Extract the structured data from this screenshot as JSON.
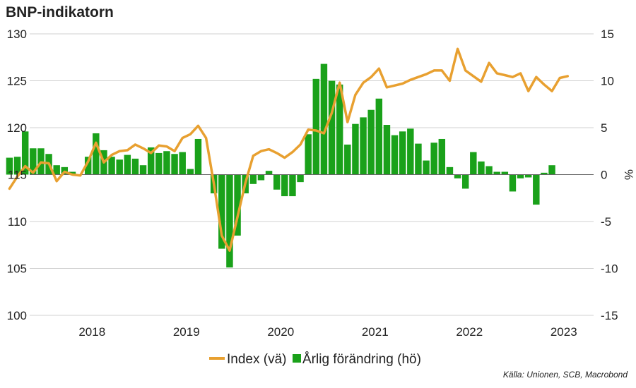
{
  "title": "BNP-indikatorn",
  "source": "Källa: Unionen, SCB, Macrobond",
  "chart_data": {
    "type": "bar+line",
    "title": "BNP-indikatorn",
    "x_tick_labels": [
      "2018",
      "2019",
      "2020",
      "2021",
      "2022",
      "2023"
    ],
    "left_axis": {
      "ylim": [
        100,
        130
      ],
      "ticks": [
        130,
        125,
        120,
        115,
        110,
        105,
        100
      ]
    },
    "right_axis": {
      "ylim": [
        -15,
        15
      ],
      "ticks": [
        15,
        10,
        5,
        0,
        -5,
        -10,
        -15
      ],
      "label": "%"
    },
    "grid": true,
    "legend_position": "bottom-center",
    "colors": {
      "line": "#e8a030",
      "bars": "#1aa11a",
      "grid": "#d0d0d0"
    },
    "start": {
      "year": 2017,
      "month": 8
    },
    "series": [
      {
        "name": "Index (vä)",
        "kind": "line",
        "axis": "left",
        "values": [
          113.5,
          114.8,
          115.9,
          115.2,
          116.3,
          116.2,
          114.3,
          115.3,
          115.0,
          114.9,
          116.4,
          118.4,
          116.3,
          117.1,
          117.5,
          117.6,
          118.2,
          117.8,
          117.3,
          118.1,
          118.0,
          117.5,
          118.9,
          119.3,
          120.2,
          118.9,
          114.0,
          108.5,
          106.9,
          110.5,
          114.1,
          117.0,
          117.5,
          117.7,
          117.3,
          116.8,
          117.4,
          118.2,
          119.8,
          119.7,
          119.4,
          121.6,
          124.8,
          120.6,
          123.5,
          124.8,
          125.4,
          126.3,
          124.3,
          124.5,
          124.7,
          125.1,
          125.4,
          125.7,
          126.1,
          126.1,
          125.0,
          128.4,
          126.1,
          125.5,
          124.9,
          126.9,
          125.8,
          125.6,
          125.4,
          125.8,
          123.9,
          125.4,
          124.6,
          123.9,
          125.3,
          125.5
        ],
        "color": "#e8a030"
      },
      {
        "name": "Årlig förändring (hö)",
        "kind": "bar",
        "axis": "right",
        "values": [
          1.8,
          1.9,
          4.6,
          2.8,
          2.8,
          2.2,
          1.0,
          0.8,
          0.3,
          0.0,
          1.9,
          4.4,
          2.6,
          1.9,
          1.6,
          2.1,
          1.7,
          1.0,
          2.9,
          2.3,
          2.5,
          2.2,
          2.4,
          0.6,
          3.8,
          0.0,
          -2.0,
          -7.9,
          -9.9,
          -6.5,
          -2.0,
          -1.0,
          -0.6,
          0.4,
          -1.6,
          -2.3,
          -2.3,
          -0.8,
          4.3,
          10.2,
          11.8,
          10.0,
          9.6,
          3.2,
          5.4,
          6.1,
          6.9,
          8.1,
          5.3,
          4.2,
          4.6,
          4.9,
          3.3,
          1.5,
          3.4,
          3.8,
          0.8,
          -0.4,
          -1.5,
          2.4,
          1.4,
          0.9,
          0.3,
          0.3,
          -1.8,
          -0.4,
          -0.3,
          -3.2,
          0.2,
          1.0
        ],
        "color": "#1aa11a"
      }
    ],
    "legend": [
      {
        "label": "Index (vä)",
        "symbol": "line",
        "color": "#e8a030"
      },
      {
        "label": "Årlig förändring (hö)",
        "symbol": "square",
        "color": "#1aa11a"
      }
    ]
  }
}
